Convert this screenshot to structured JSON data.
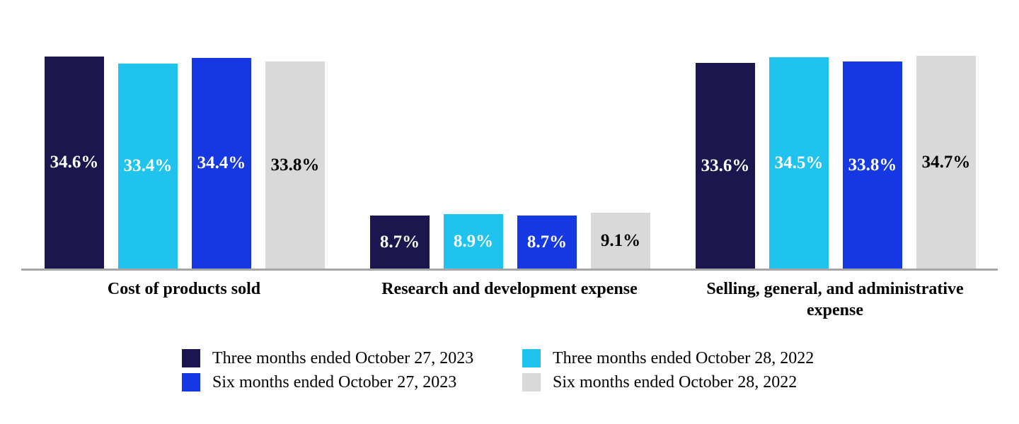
{
  "chart_data": {
    "type": "bar",
    "title": "",
    "categories": [
      "Cost of products sold",
      "Research and development expense",
      "Selling, general, and administrative\nexpense"
    ],
    "series": [
      {
        "name": "Three months ended October 27, 2023",
        "color": "#1B164D",
        "label_text_color": "#FFFFFF",
        "values": [
          34.6,
          8.7,
          33.6
        ]
      },
      {
        "name": "Three months ended October 28, 2022",
        "color": "#1FC3EE",
        "label_text_color": "#FFFFFF",
        "values": [
          33.4,
          8.9,
          34.5
        ]
      },
      {
        "name": "Six months ended October 27, 2023",
        "color": "#1638E2",
        "label_text_color": "#FFFFFF",
        "values": [
          34.4,
          8.7,
          33.8
        ]
      },
      {
        "name": "Six months ended October 28, 2022",
        "color": "#D9D9D9",
        "label_text_color": "#000000",
        "values": [
          33.8,
          9.1,
          34.7
        ]
      }
    ],
    "value_suffix": "%",
    "value_decimals": 1,
    "axis_line_color": "#A6A6A6",
    "background_color": "#FFFFFF",
    "grid": false,
    "legend_position": "bottom",
    "ylim": [
      0,
      40
    ],
    "data_labels_inside_bars": true
  }
}
